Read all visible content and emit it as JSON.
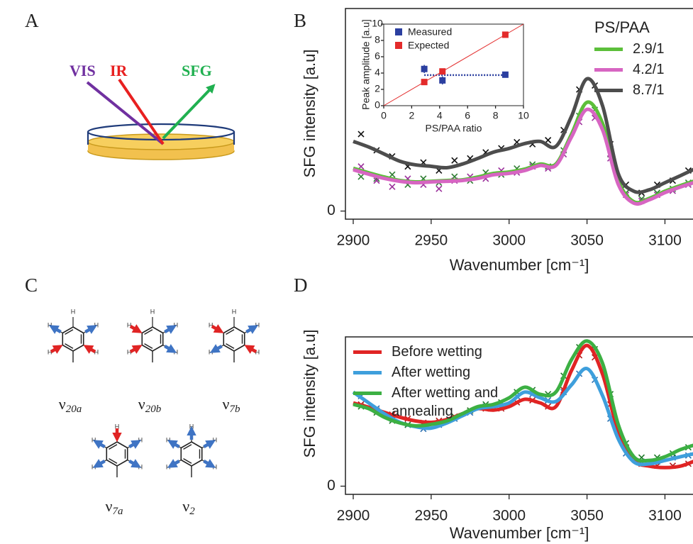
{
  "panels": [
    "A",
    "B",
    "C",
    "D"
  ],
  "beams": [
    "VIS",
    "IR",
    "SFG"
  ],
  "atom_label": "H",
  "modes": [
    {
      "symbol": "ν",
      "sub": "20a"
    },
    {
      "symbol": "ν",
      "sub": "20b"
    },
    {
      "symbol": "ν",
      "sub": "7b"
    },
    {
      "symbol": "ν",
      "sub": "7a"
    },
    {
      "symbol": "ν",
      "sub": "2"
    }
  ],
  "chart_data": [
    {
      "type": "line",
      "xlabel": "Wavenumber [cm⁻¹]",
      "ylabel": "SFG intensity [a.u]",
      "xlim": [
        2895,
        3118
      ],
      "ylim": [
        -0.04,
        1.0
      ],
      "xticks": [
        2900,
        2950,
        3000,
        3050,
        3100
      ],
      "yticks": [
        0
      ],
      "legend": "upper right",
      "legend_title": "PS/PAA",
      "x": [
        2900,
        2910,
        2920,
        2930,
        2940,
        2950,
        2960,
        2970,
        2980,
        2990,
        3000,
        3010,
        3020,
        3030,
        3040,
        3050,
        3060,
        3070,
        3080,
        3090,
        3100,
        3110,
        3120
      ],
      "points_x": [
        2905,
        2915,
        2925,
        2935,
        2945,
        2955,
        2965,
        2975,
        2985,
        2995,
        3005,
        3015,
        3025,
        3035,
        3045,
        3055,
        3065,
        3075,
        3085,
        3095,
        3105,
        3115
      ],
      "series": [
        {
          "name": "2.9/1",
          "color": "#5cbf3a",
          "marker_color": "#2e7d32",
          "values": [
            0.211,
            0.189,
            0.168,
            0.151,
            0.144,
            0.147,
            0.151,
            0.154,
            0.168,
            0.186,
            0.193,
            0.207,
            0.232,
            0.232,
            0.379,
            0.537,
            0.432,
            0.151,
            0.046,
            0.063,
            0.098,
            0.126,
            0.151
          ],
          "points": [
            0.17,
            0.16,
            0.18,
            0.13,
            0.16,
            0.14,
            0.17,
            0.15,
            0.19,
            0.18,
            0.21,
            0.23,
            0.22,
            0.3,
            0.47,
            0.5,
            0.28,
            0.09,
            0.06,
            0.09,
            0.11,
            0.14
          ]
        },
        {
          "name": "4.2/1",
          "color": "#d765c2",
          "marker_color": "#9b2f9b",
          "values": [
            0.204,
            0.182,
            0.161,
            0.147,
            0.14,
            0.144,
            0.147,
            0.151,
            0.161,
            0.179,
            0.186,
            0.2,
            0.225,
            0.225,
            0.365,
            0.502,
            0.4,
            0.133,
            0.039,
            0.056,
            0.091,
            0.119,
            0.144
          ],
          "points": [
            0.22,
            0.15,
            0.12,
            0.16,
            0.13,
            0.11,
            0.15,
            0.17,
            0.16,
            0.2,
            0.19,
            0.22,
            0.21,
            0.28,
            0.44,
            0.46,
            0.26,
            0.08,
            0.05,
            0.08,
            0.1,
            0.13
          ]
        },
        {
          "name": "8.7/1",
          "color": "#4d4d4d",
          "marker_color": "#111111",
          "values": [
            0.344,
            0.316,
            0.281,
            0.246,
            0.228,
            0.221,
            0.214,
            0.232,
            0.26,
            0.291,
            0.309,
            0.333,
            0.344,
            0.319,
            0.467,
            0.653,
            0.519,
            0.186,
            0.098,
            0.105,
            0.14,
            0.175,
            0.211
          ],
          "points": [
            0.38,
            0.3,
            0.27,
            0.22,
            0.24,
            0.2,
            0.25,
            0.26,
            0.29,
            0.31,
            0.34,
            0.33,
            0.35,
            0.4,
            0.6,
            0.62,
            0.33,
            0.13,
            0.09,
            0.13,
            0.15,
            0.2
          ]
        }
      ]
    },
    {
      "type": "scatter",
      "xlabel": "PS/PAA ratio",
      "ylabel": "Peak amplitude [a.u]",
      "xlim": [
        0,
        10
      ],
      "ylim": [
        0,
        10
      ],
      "xticks": [
        0,
        2,
        4,
        6,
        8,
        10
      ],
      "yticks": [
        0,
        2,
        4,
        6,
        8,
        10
      ],
      "legend": "upper left",
      "x": [
        2.9,
        4.2,
        8.7
      ],
      "series": [
        {
          "name": "Measured",
          "color": "#2b3fa0",
          "values": [
            4.5,
            3.1,
            3.8
          ],
          "errors": [
            0.5,
            0.5,
            0.1
          ],
          "trend": {
            "x": [
              2.9,
              8.7
            ],
            "values": [
              3.75,
              3.75
            ]
          }
        },
        {
          "name": "Expected",
          "color": "#e32b2b",
          "values": [
            2.9,
            4.2,
            8.7
          ],
          "trend": {
            "x": [
              0,
              10
            ],
            "values": [
              0,
              10
            ]
          }
        }
      ]
    },
    {
      "type": "line",
      "xlabel": "Wavenumber [cm⁻¹]",
      "ylabel": "SFG intensity [a.u]",
      "xlim": [
        2895,
        3118
      ],
      "ylim": [
        -0.04,
        0.73
      ],
      "xticks": [
        2900,
        2950,
        3000,
        3050,
        3100
      ],
      "yticks": [
        0
      ],
      "legend": "upper left",
      "x": [
        2900,
        2910,
        2920,
        2930,
        2940,
        2950,
        2960,
        2970,
        2980,
        2990,
        3000,
        3010,
        3020,
        3030,
        3040,
        3050,
        3060,
        3070,
        3080,
        3090,
        3100,
        3110,
        3120
      ],
      "points_x": [
        2905,
        2915,
        2925,
        2935,
        2945,
        2955,
        2965,
        2975,
        2985,
        2995,
        3005,
        3015,
        3025,
        3035,
        3045,
        3055,
        3065,
        3075,
        3085,
        3095,
        3105,
        3115
      ],
      "series": [
        {
          "name": "Before wetting",
          "color": "#e02424",
          "marker_color": "#b01818",
          "values": [
            0.407,
            0.386,
            0.361,
            0.337,
            0.319,
            0.312,
            0.326,
            0.354,
            0.379,
            0.372,
            0.389,
            0.425,
            0.407,
            0.389,
            0.565,
            0.688,
            0.547,
            0.267,
            0.126,
            0.098,
            0.091,
            0.098,
            0.126
          ],
          "points": [
            0.4,
            0.37,
            0.35,
            0.33,
            0.31,
            0.32,
            0.34,
            0.37,
            0.38,
            0.38,
            0.41,
            0.42,
            0.39,
            0.47,
            0.64,
            0.63,
            0.4,
            0.19,
            0.11,
            0.1,
            0.1,
            0.11
          ]
        },
        {
          "name": "After wetting",
          "color": "#3e9fdc",
          "marker_color": "#2a6fb0",
          "values": [
            0.46,
            0.407,
            0.354,
            0.312,
            0.291,
            0.284,
            0.309,
            0.344,
            0.379,
            0.389,
            0.407,
            0.46,
            0.432,
            0.414,
            0.495,
            0.575,
            0.442,
            0.232,
            0.119,
            0.109,
            0.126,
            0.144,
            0.161
          ],
          "points": [
            0.44,
            0.38,
            0.33,
            0.3,
            0.28,
            0.3,
            0.33,
            0.36,
            0.39,
            0.39,
            0.44,
            0.45,
            0.42,
            0.46,
            0.55,
            0.52,
            0.33,
            0.16,
            0.12,
            0.12,
            0.14,
            0.15
          ]
        },
        {
          "name": "After wetting and annealing",
          "color": "#3cb043",
          "marker_color": "#1f7a2a",
          "values": [
            0.4,
            0.379,
            0.337,
            0.309,
            0.295,
            0.302,
            0.319,
            0.354,
            0.389,
            0.4,
            0.432,
            0.484,
            0.449,
            0.46,
            0.618,
            0.71,
            0.6,
            0.302,
            0.144,
            0.126,
            0.144,
            0.179,
            0.204
          ],
          "points": [
            0.39,
            0.36,
            0.32,
            0.3,
            0.3,
            0.31,
            0.34,
            0.37,
            0.4,
            0.41,
            0.46,
            0.47,
            0.45,
            0.54,
            0.68,
            0.67,
            0.45,
            0.21,
            0.14,
            0.14,
            0.16,
            0.19
          ]
        }
      ]
    }
  ]
}
